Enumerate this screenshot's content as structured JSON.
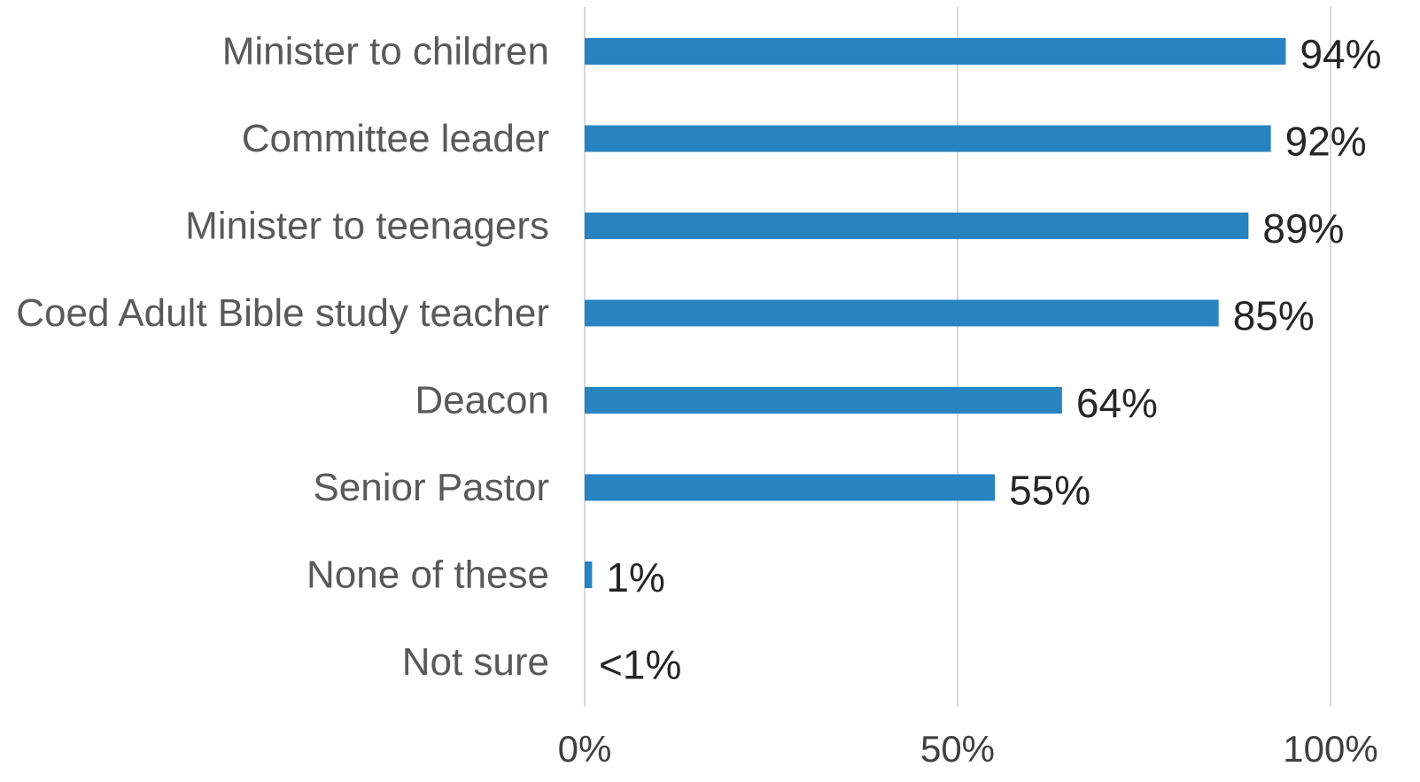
{
  "chart_data": {
    "type": "bar",
    "orientation": "horizontal",
    "categories": [
      "Minister to children",
      "Committee leader",
      "Minister to teenagers",
      "Coed Adult Bible study teacher",
      "Deacon",
      "Senior Pastor",
      "None of these",
      "Not sure"
    ],
    "values": [
      94,
      92,
      89,
      85,
      64,
      55,
      1,
      0
    ],
    "data_labels": [
      "94%",
      "92%",
      "89%",
      "85%",
      "64%",
      "55%",
      "1%",
      "<1%"
    ],
    "xlim": [
      0,
      100
    ],
    "x_ticks": [
      0,
      50,
      100
    ],
    "x_tick_labels": [
      "0%",
      "50%",
      "100%"
    ],
    "grid": "vertical",
    "legend": "none",
    "bar_color": "#2784c1",
    "title": "",
    "xlabel": "",
    "ylabel": ""
  }
}
